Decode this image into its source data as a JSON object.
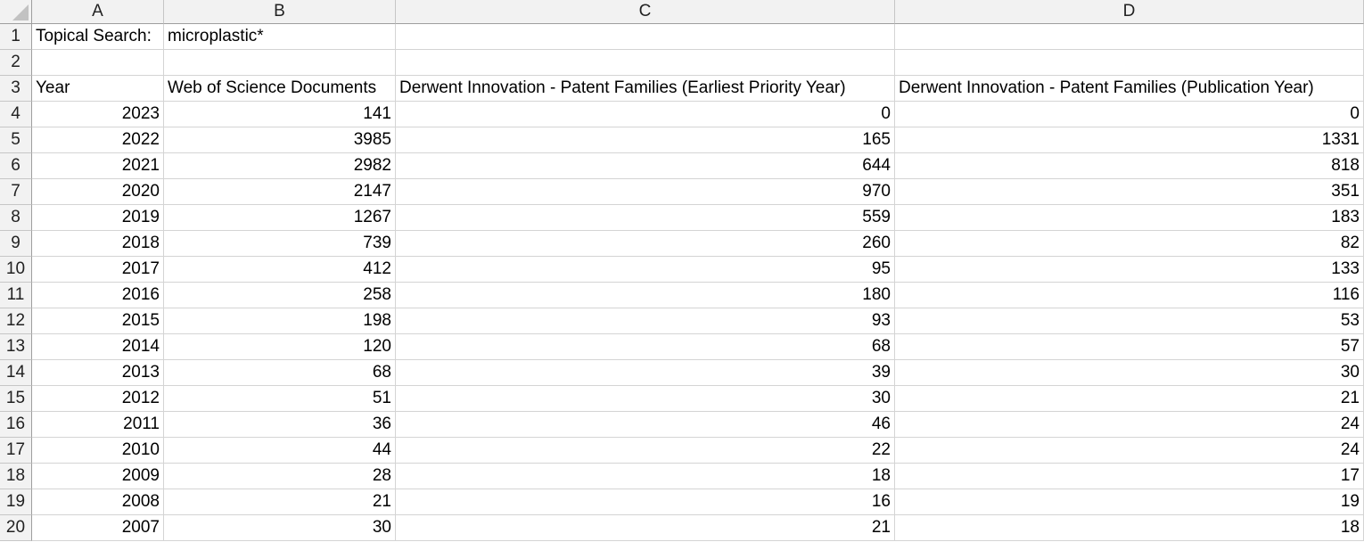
{
  "columns": [
    "A",
    "B",
    "C",
    "D"
  ],
  "rows": [
    {
      "num": "1",
      "A": "Topical Search:",
      "B": "microplastic*",
      "C": "",
      "D": ""
    },
    {
      "num": "2",
      "A": "",
      "B": "",
      "C": "",
      "D": ""
    },
    {
      "num": "3",
      "A": "Year",
      "B": "Web of Science Documents",
      "C": "Derwent Innovation - Patent Families (Earliest Priority Year)",
      "D": "Derwent Innovation - Patent Families (Publication Year)"
    },
    {
      "num": "4",
      "A": "2023",
      "B": "141",
      "C": "0",
      "D": "0"
    },
    {
      "num": "5",
      "A": "2022",
      "B": "3985",
      "C": "165",
      "D": "1331"
    },
    {
      "num": "6",
      "A": "2021",
      "B": "2982",
      "C": "644",
      "D": "818"
    },
    {
      "num": "7",
      "A": "2020",
      "B": "2147",
      "C": "970",
      "D": "351"
    },
    {
      "num": "8",
      "A": "2019",
      "B": "1267",
      "C": "559",
      "D": "183"
    },
    {
      "num": "9",
      "A": "2018",
      "B": "739",
      "C": "260",
      "D": "82"
    },
    {
      "num": "10",
      "A": "2017",
      "B": "412",
      "C": "95",
      "D": "133"
    },
    {
      "num": "11",
      "A": "2016",
      "B": "258",
      "C": "180",
      "D": "116"
    },
    {
      "num": "12",
      "A": "2015",
      "B": "198",
      "C": "93",
      "D": "53"
    },
    {
      "num": "13",
      "A": "2014",
      "B": "120",
      "C": "68",
      "D": "57"
    },
    {
      "num": "14",
      "A": "2013",
      "B": "68",
      "C": "39",
      "D": "30"
    },
    {
      "num": "15",
      "A": "2012",
      "B": "51",
      "C": "30",
      "D": "21"
    },
    {
      "num": "16",
      "A": "2011",
      "B": "36",
      "C": "46",
      "D": "24"
    },
    {
      "num": "17",
      "A": "2010",
      "B": "44",
      "C": "22",
      "D": "24"
    },
    {
      "num": "18",
      "A": "2009",
      "B": "28",
      "C": "18",
      "D": "17"
    },
    {
      "num": "19",
      "A": "2008",
      "B": "21",
      "C": "16",
      "D": "19"
    },
    {
      "num": "20",
      "A": "2007",
      "B": "30",
      "C": "21",
      "D": "18"
    }
  ]
}
